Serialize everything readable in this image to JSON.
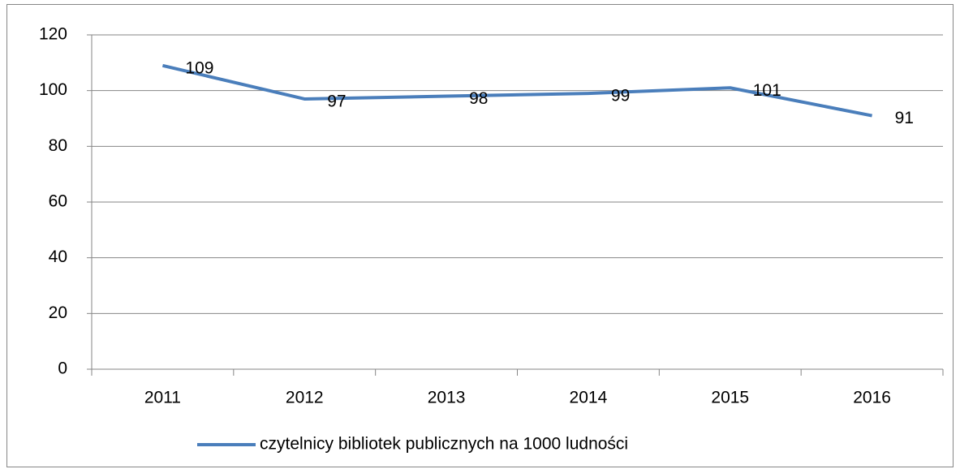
{
  "chart_data": {
    "type": "line",
    "categories": [
      "2011",
      "2012",
      "2013",
      "2014",
      "2015",
      "2016"
    ],
    "series": [
      {
        "name": "czytelnicy bibliotek publicznych na 1000 ludności",
        "color": "#4a7ebb",
        "values": [
          109,
          97,
          98,
          99,
          101,
          91
        ]
      }
    ],
    "ylim": [
      0,
      120
    ],
    "yticks": [
      0,
      20,
      40,
      60,
      80,
      100,
      120
    ],
    "grid": true,
    "legend": "bottom"
  }
}
